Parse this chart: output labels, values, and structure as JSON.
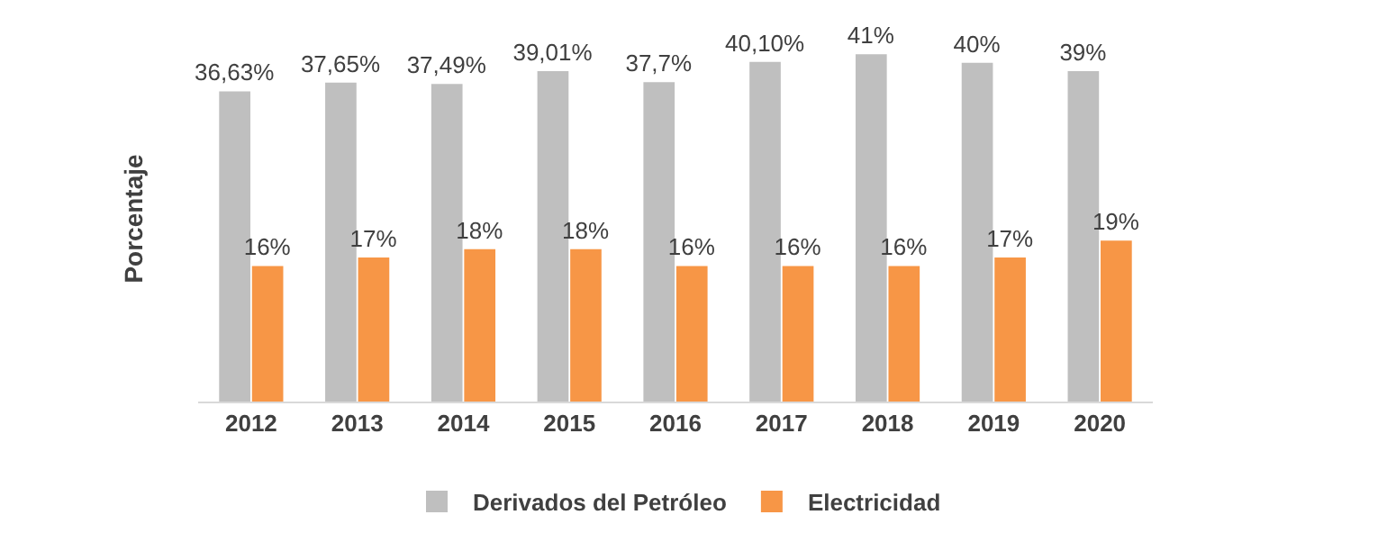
{
  "chart_data": {
    "type": "bar",
    "ylabel": "Porcentaje",
    "categories": [
      "2012",
      "2013",
      "2014",
      "2015",
      "2016",
      "2017",
      "2018",
      "2019",
      "2020"
    ],
    "series": [
      {
        "name": "Derivados del Petróleo",
        "color": "#bfbfbf",
        "values": [
          36.63,
          37.65,
          37.49,
          39.01,
          37.7,
          40.1,
          41,
          40,
          39
        ],
        "value_labels": [
          "36,63%",
          "37,65%",
          "37,49%",
          "39,01%",
          "37,7%",
          "40,10%",
          "41%",
          "40%",
          "39%"
        ]
      },
      {
        "name": "Electricidad",
        "color": "#f79646",
        "values": [
          16,
          17,
          18,
          18,
          16,
          16,
          16,
          17,
          19
        ],
        "value_labels": [
          "16%",
          "17%",
          "18%",
          "18%",
          "16%",
          "16%",
          "16%",
          "17%",
          "19%"
        ]
      }
    ],
    "tick_labels": "x",
    "grid": false,
    "legend": "bottom"
  }
}
